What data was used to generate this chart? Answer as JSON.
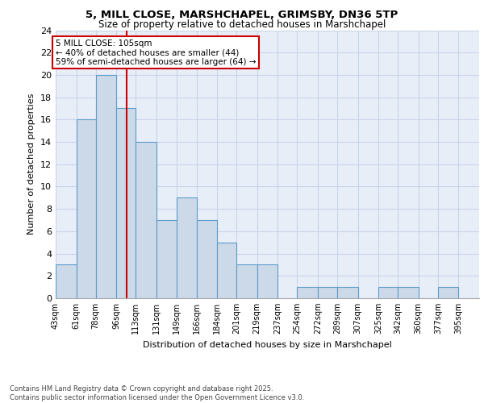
{
  "title1": "5, MILL CLOSE, MARSHCHAPEL, GRIMSBY, DN36 5TP",
  "title2": "Size of property relative to detached houses in Marshchapel",
  "xlabel": "Distribution of detached houses by size in Marshchapel",
  "ylabel": "Number of detached properties",
  "bin_labels": [
    "43sqm",
    "61sqm",
    "78sqm",
    "96sqm",
    "113sqm",
    "131sqm",
    "149sqm",
    "166sqm",
    "184sqm",
    "201sqm",
    "219sqm",
    "237sqm",
    "254sqm",
    "272sqm",
    "289sqm",
    "307sqm",
    "325sqm",
    "342sqm",
    "360sqm",
    "377sqm",
    "395sqm"
  ],
  "bin_edges": [
    43,
    61,
    78,
    96,
    113,
    131,
    149,
    166,
    184,
    201,
    219,
    237,
    254,
    272,
    289,
    307,
    325,
    342,
    360,
    377,
    395
  ],
  "bar_values": [
    3,
    16,
    20,
    17,
    14,
    7,
    9,
    7,
    5,
    3,
    3,
    0,
    1,
    1,
    1,
    0,
    1,
    1,
    0,
    1,
    0
  ],
  "bar_color": "#ccd9e8",
  "bar_edge_color": "#5b9cc9",
  "red_line_x": 105,
  "annotation_line1": "5 MILL CLOSE: 105sqm",
  "annotation_line2": "← 40% of detached houses are smaller (44)",
  "annotation_line3": "59% of semi-detached houses are larger (64) →",
  "annotation_box_color": "white",
  "annotation_box_edge": "#cc0000",
  "grid_color": "#c8d4e8",
  "background_color": "#e8eef8",
  "footer_text": "Contains HM Land Registry data © Crown copyright and database right 2025.\nContains public sector information licensed under the Open Government Licence v3.0.",
  "ylim": [
    0,
    24
  ],
  "yticks": [
    0,
    2,
    4,
    6,
    8,
    10,
    12,
    14,
    16,
    18,
    20,
    22,
    24
  ]
}
